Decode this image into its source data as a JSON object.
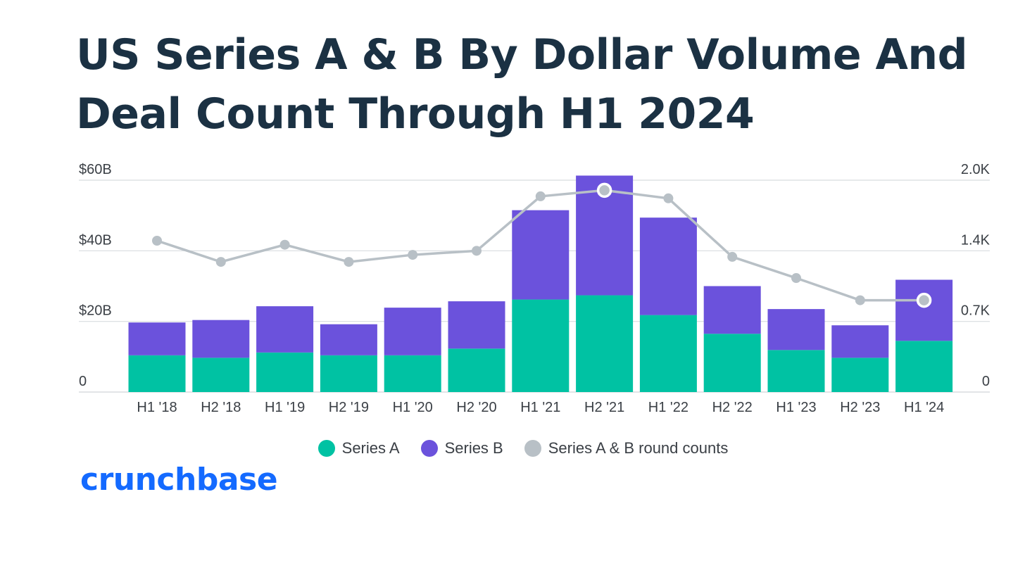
{
  "title": "US Series A & B By Dollar Volume And Deal Count Through H1 2024",
  "brand": {
    "name": "crunchbase",
    "color": "#146aff"
  },
  "colors": {
    "series_a": "#00c2a3",
    "series_b": "#6b52dc",
    "counts": "#b8c0c6",
    "grid": "#d8dcdf",
    "title": "#1b3143"
  },
  "chart_data": {
    "type": "bar",
    "stacked": true,
    "title": "US Series A & B By Dollar Volume And Deal Count Through H1 2024",
    "categories": [
      "H1 '18",
      "H2 '18",
      "H1 '19",
      "H2 '19",
      "H1 '20",
      "H2 '20",
      "H1 '21",
      "H2 '21",
      "H1 '22",
      "H2 '22",
      "H1 '23",
      "H2 '23",
      "H1 '24"
    ],
    "series": [
      {
        "name": "Series A",
        "axis": "left",
        "values": [
          10.4,
          9.7,
          11.2,
          10.4,
          10.4,
          12.3,
          26.2,
          27.4,
          21.8,
          16.5,
          11.9,
          9.7,
          14.5
        ]
      },
      {
        "name": "Series B",
        "axis": "left",
        "values": [
          9.3,
          10.7,
          13.1,
          8.8,
          13.5,
          13.4,
          25.3,
          33.9,
          27.6,
          13.5,
          11.6,
          9.2,
          17.3
        ]
      }
    ],
    "line_series": {
      "name": "Series A & B round counts",
      "axis": "right",
      "values": [
        1.5,
        1.29,
        1.46,
        1.29,
        1.36,
        1.4,
        1.94,
        2.0,
        1.92,
        1.34,
        1.13,
        0.91,
        0.91
      ],
      "highlighted_points": [
        "H2 '21",
        "H1 '24"
      ]
    },
    "left_axis": {
      "ticks": [
        "0",
        "$20B",
        "$40B",
        "$60B"
      ],
      "ylim": [
        0,
        60
      ]
    },
    "right_axis": {
      "ticks": [
        "0",
        "0.7K",
        "1.4K",
        "2.0K"
      ],
      "ylim": [
        0,
        2.1
      ]
    },
    "legend": [
      "Series A",
      "Series B",
      "Series A & B round counts"
    ],
    "legend_position": "bottom-center"
  }
}
